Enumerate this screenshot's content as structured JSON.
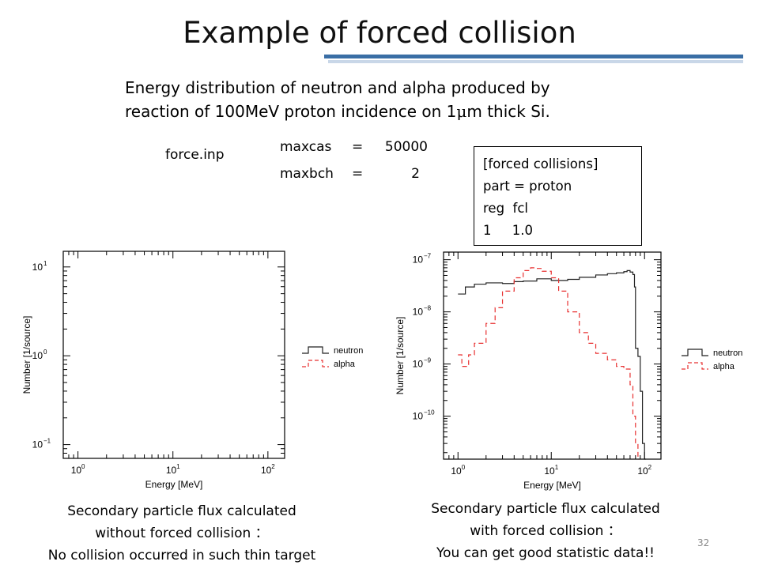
{
  "slide": {
    "title": "Example of forced collision",
    "description": {
      "line1": "Energy distribution of neutron and alpha produced by",
      "line2_before": "reaction of 100MeV proton incidence on 1",
      "line2_mu": "μ",
      "line2_after": "m thick Si."
    },
    "input_file": "force.inp",
    "parameters": [
      {
        "name": "maxcas",
        "eq": "=",
        "value": "50000"
      },
      {
        "name": "maxbch",
        "eq": "=",
        "value": "2"
      }
    ],
    "forced_collisions_box": {
      "lines": [
        "[forced collisions]",
        "part = proton",
        "reg  fcl",
        "1     1.0"
      ]
    },
    "page_number": "32"
  },
  "captions": {
    "left": {
      "line1": "Secondary particle flux calculated",
      "line2": "without forced collision ：",
      "line3": "No collision occurred in such thin target"
    },
    "right": {
      "line1": "Secondary particle flux calculated",
      "line2": "with forced collision ：",
      "line3": "You can get good statistic data!!"
    }
  },
  "chart_data": [
    {
      "type": "line",
      "title": "",
      "xlabel": "Energy [MeV]",
      "ylabel": "Number [1/source]",
      "xscale": "log",
      "yscale": "log",
      "xlim": [
        0.7,
        150
      ],
      "ylim": [
        0.07,
        15
      ],
      "x_ticks": [
        {
          "base": "10",
          "exp": "0"
        },
        {
          "base": "10",
          "exp": "1"
        },
        {
          "base": "10",
          "exp": "2"
        }
      ],
      "y_ticks": [
        {
          "base": "10",
          "exp": "−1"
        },
        {
          "base": "10",
          "exp": "0"
        },
        {
          "base": "10",
          "exp": "1"
        }
      ],
      "legend_position": "right, outside",
      "series": [
        {
          "name": "neutron",
          "color": "#222222",
          "style": "solid",
          "x": [],
          "y": []
        },
        {
          "name": "alpha",
          "color": "#e83030",
          "style": "dashed",
          "x": [],
          "y": []
        }
      ]
    },
    {
      "type": "line",
      "title": "",
      "xlabel": "Energy [MeV]",
      "ylabel": "Number [1/source]",
      "xscale": "log",
      "yscale": "log",
      "xlim": [
        0.7,
        150
      ],
      "ylim": [
        1.5e-11,
        1.4e-07
      ],
      "x_ticks": [
        {
          "base": "10",
          "exp": "0"
        },
        {
          "base": "10",
          "exp": "1"
        },
        {
          "base": "10",
          "exp": "2"
        }
      ],
      "y_ticks": [
        {
          "base": "10",
          "exp": "−10"
        },
        {
          "base": "10",
          "exp": "−9"
        },
        {
          "base": "10",
          "exp": "−8"
        },
        {
          "base": "10",
          "exp": "−7"
        }
      ],
      "legend_position": "right, outside",
      "series": [
        {
          "name": "neutron",
          "color": "#222222",
          "style": "solid",
          "x": [
            1.0,
            1.2,
            1.5,
            2,
            3,
            4,
            5,
            7,
            10,
            15,
            20,
            30,
            40,
            50,
            60,
            65,
            70,
            75,
            78,
            80,
            85,
            90,
            95,
            100
          ],
          "y": [
            2.2e-08,
            3e-08,
            3.4e-08,
            3.6e-08,
            3.5e-08,
            3.8e-08,
            3.9e-08,
            4.3e-08,
            4e-08,
            4.2e-08,
            4.6e-08,
            5.1e-08,
            5.4e-08,
            5.6e-08,
            5.9e-08,
            6.2e-08,
            5.8e-08,
            5.2e-08,
            3e-08,
            2e-09,
            1.4e-09,
            3e-10,
            3e-11,
            1.5e-11
          ]
        },
        {
          "name": "alpha",
          "color": "#e83030",
          "style": "dashed",
          "x": [
            1.0,
            1.1,
            1.3,
            1.5,
            2,
            2.5,
            3,
            4,
            5,
            6,
            7,
            8,
            10,
            12,
            15,
            20,
            25,
            30,
            40,
            50,
            60,
            70,
            75,
            80,
            85
          ],
          "y": [
            1.5e-09,
            9e-10,
            1.5e-09,
            2.5e-09,
            6e-09,
            1.2e-08,
            2.5e-08,
            4.5e-08,
            6.2e-08,
            7e-08,
            6.8e-08,
            6e-08,
            4.5e-08,
            2.5e-08,
            1e-08,
            4e-09,
            2.5e-09,
            1.6e-09,
            1.2e-09,
            9e-10,
            8e-10,
            4e-10,
            1e-10,
            3e-11,
            1.5e-11
          ]
        }
      ]
    }
  ]
}
